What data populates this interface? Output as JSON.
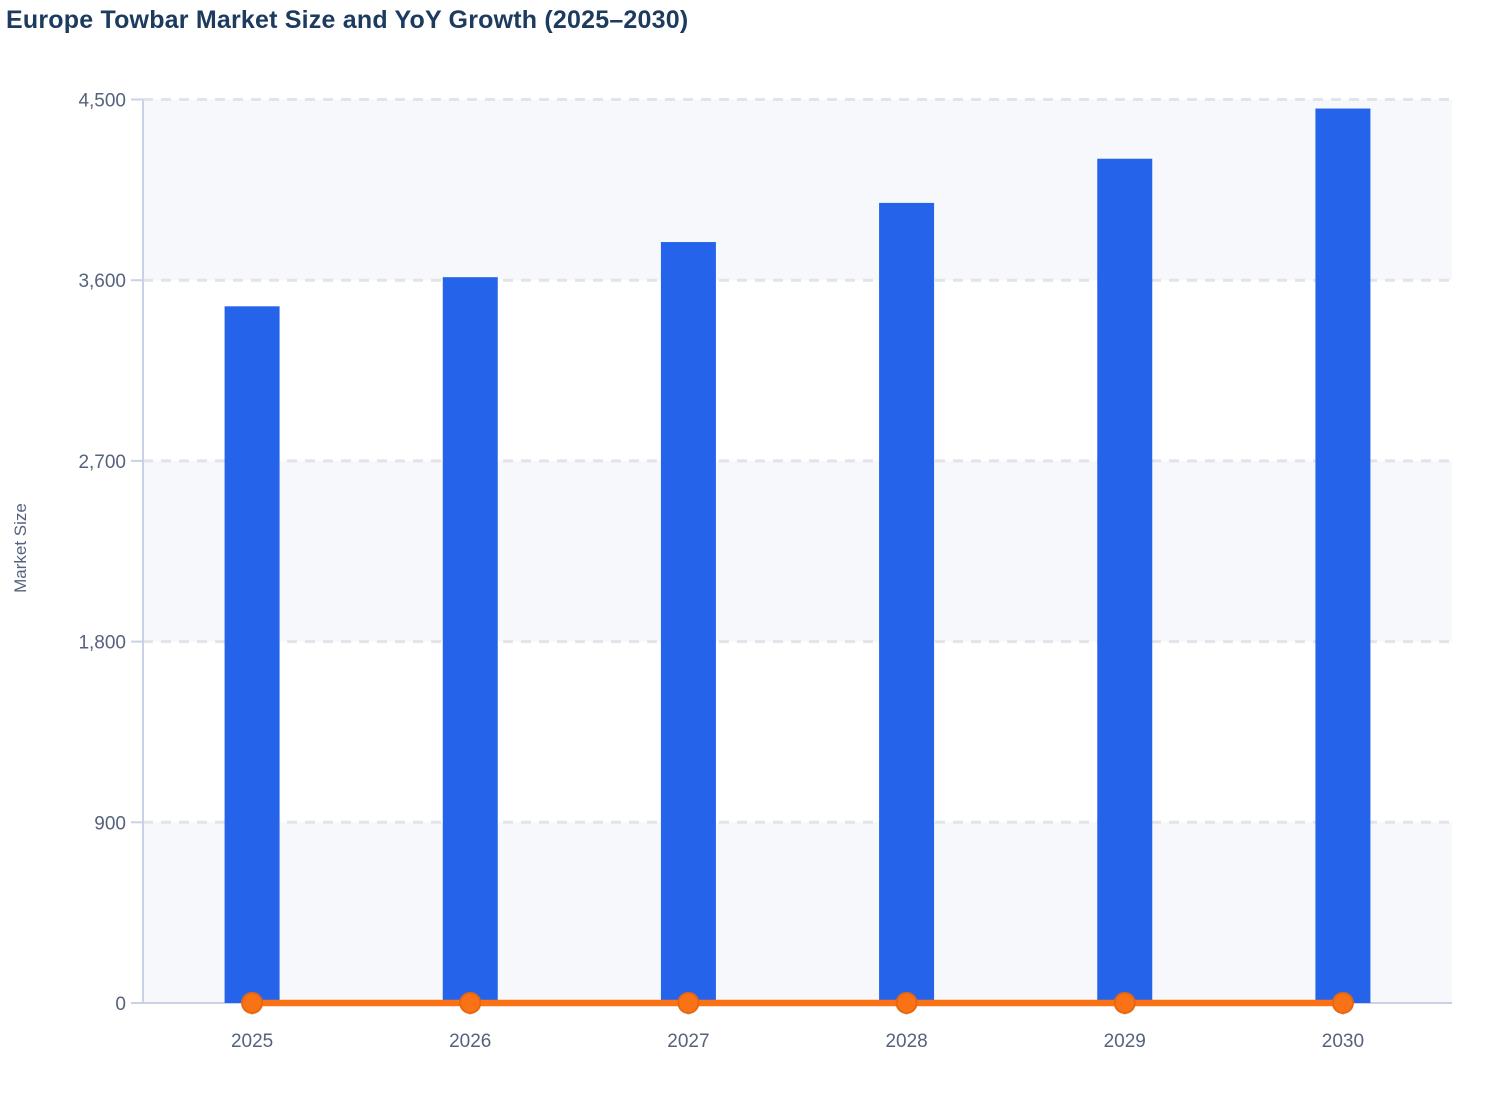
{
  "page": {
    "title": "Europe Towbar Market Size and YoY Growth (2025–2030)"
  },
  "colors": {
    "bar": "#2563EB",
    "line": "#F97316",
    "marker_fill": "#F97316",
    "marker_stroke": "#E8670E",
    "title_text": "#1D3A5F",
    "axis_text": "#56627D",
    "axis_line": "#C9D2E4",
    "gridline": "#E2E4E9",
    "band": "#F7F8FB",
    "background": "#FFFFFF"
  },
  "chart_data": {
    "type": "bar",
    "title": "Europe Towbar Market Size and YoY Growth (2025–2030)",
    "categories": [
      "2025",
      "2026",
      "2027",
      "2028",
      "2029",
      "2030"
    ],
    "series": [
      {
        "name": "Market Size",
        "type": "bar",
        "values": [
          3470,
          3615,
          3790,
          3985,
          4205,
          4455
        ]
      },
      {
        "name": "YoY Growth",
        "type": "line",
        "values": [
          0,
          0,
          0,
          0,
          0,
          0
        ],
        "note": "orange line with circular markers at every year, rendered flat along the 0 baseline; growth percentages are not labeled anywhere on the chart"
      }
    ],
    "xlabel": "",
    "ylabel": "Market Size",
    "ylim": [
      0,
      4500
    ],
    "yticks": [
      0,
      900,
      1800,
      2700,
      3600,
      4500
    ],
    "ytick_labels": [
      "0",
      "900",
      "1,800",
      "2,700",
      "3,600",
      "4,500"
    ],
    "grid": "horizontal dashed gridlines at each y tick",
    "plot_bands": "alternating horizontal shaded bands: 0-900, 1800-2700, 3600-4500 shaded light gray; others white",
    "legend": "none"
  }
}
